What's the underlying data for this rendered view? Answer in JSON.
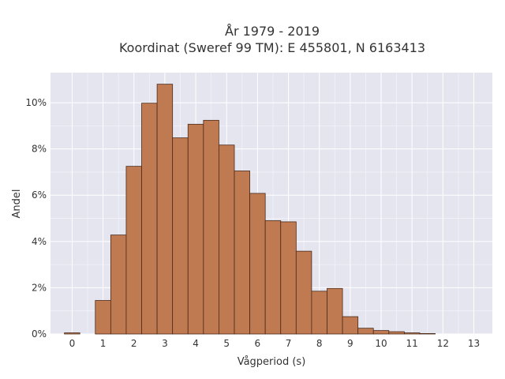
{
  "chart_data": {
    "type": "bar",
    "title_line1": "År 1979 - 2019",
    "title_line2": "Koordinat (Sweref 99 TM): E 455801, N 6163413",
    "xlabel": "Vågperiod (s)",
    "ylabel": "Andel",
    "bin_width": 0.5,
    "bin_starts": [
      -0.25,
      0.25,
      0.75,
      1.25,
      1.75,
      2.25,
      2.75,
      3.25,
      3.75,
      4.25,
      4.75,
      5.25,
      5.75,
      6.25,
      6.75,
      7.25,
      7.75,
      8.25,
      8.75,
      9.25,
      9.75,
      10.25,
      10.75,
      11.25,
      11.75,
      12.25,
      12.75
    ],
    "values": [
      0.05,
      0,
      1.45,
      4.28,
      7.25,
      9.98,
      10.8,
      8.48,
      9.07,
      9.24,
      8.17,
      7.05,
      6.08,
      4.9,
      4.85,
      3.58,
      1.85,
      1.97,
      0.75,
      0.25,
      0.15,
      0.1,
      0.05,
      0.02,
      0,
      0,
      0
    ],
    "xlim": [
      -0.7,
      13.6
    ],
    "ylim": [
      0,
      11.3
    ],
    "x_ticks": [
      0,
      1,
      2,
      3,
      4,
      5,
      6,
      7,
      8,
      9,
      10,
      11,
      12,
      13
    ],
    "x_tick_labels": [
      "0",
      "1",
      "2",
      "3",
      "4",
      "5",
      "6",
      "7",
      "8",
      "9",
      "10",
      "11",
      "12",
      "13"
    ],
    "y_ticks": [
      0,
      2,
      4,
      6,
      8,
      10
    ],
    "y_tick_labels": [
      "0%",
      "2%",
      "4%",
      "6%",
      "8%",
      "10%"
    ],
    "grid": true,
    "colors": {
      "bar_fill": "#c07a52",
      "bar_edge": "#4a2a1a",
      "plot_bg": "#e5e5f0"
    }
  }
}
